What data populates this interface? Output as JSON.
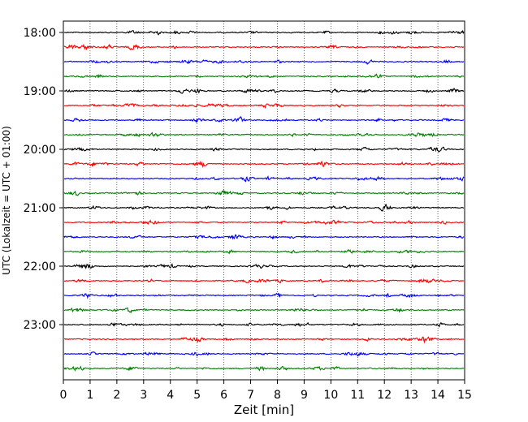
{
  "chart_data": {
    "type": "line",
    "title": "",
    "xlabel": "Zeit  [min]",
    "ylabel": "UTC (Lokalzeit = UTC + 01:00)",
    "xlim": [
      0,
      15
    ],
    "x_ticks": [
      "0",
      "1",
      "2",
      "3",
      "4",
      "5",
      "6",
      "7",
      "8",
      "9",
      "10",
      "11",
      "12",
      "13",
      "14",
      "15"
    ],
    "y_ticks": [
      "18:00",
      "19:00",
      "20:00",
      "21:00",
      "22:00",
      "23:00"
    ],
    "grid": "vertical dotted",
    "legend": "none",
    "trace_interval_min": 15,
    "start_time": "18:00",
    "series": [
      {
        "start": "18:00",
        "color": "#000000"
      },
      {
        "start": "18:15",
        "color": "#ff0000"
      },
      {
        "start": "18:30",
        "color": "#0000ff"
      },
      {
        "start": "18:45",
        "color": "#008000"
      },
      {
        "start": "19:00",
        "color": "#000000"
      },
      {
        "start": "19:15",
        "color": "#ff0000"
      },
      {
        "start": "19:30",
        "color": "#0000ff"
      },
      {
        "start": "19:45",
        "color": "#008000"
      },
      {
        "start": "20:00",
        "color": "#000000"
      },
      {
        "start": "20:15",
        "color": "#ff0000"
      },
      {
        "start": "20:30",
        "color": "#0000ff"
      },
      {
        "start": "20:45",
        "color": "#008000"
      },
      {
        "start": "21:00",
        "color": "#000000"
      },
      {
        "start": "21:15",
        "color": "#ff0000"
      },
      {
        "start": "21:30",
        "color": "#0000ff"
      },
      {
        "start": "21:45",
        "color": "#008000"
      },
      {
        "start": "22:00",
        "color": "#000000"
      },
      {
        "start": "22:15",
        "color": "#ff0000"
      },
      {
        "start": "22:30",
        "color": "#0000ff"
      },
      {
        "start": "22:45",
        "color": "#008000"
      },
      {
        "start": "23:00",
        "color": "#000000"
      },
      {
        "start": "23:15",
        "color": "#ff0000"
      },
      {
        "start": "23:30",
        "color": "#0000ff"
      },
      {
        "start": "23:45",
        "color": "#008000"
      }
    ]
  }
}
